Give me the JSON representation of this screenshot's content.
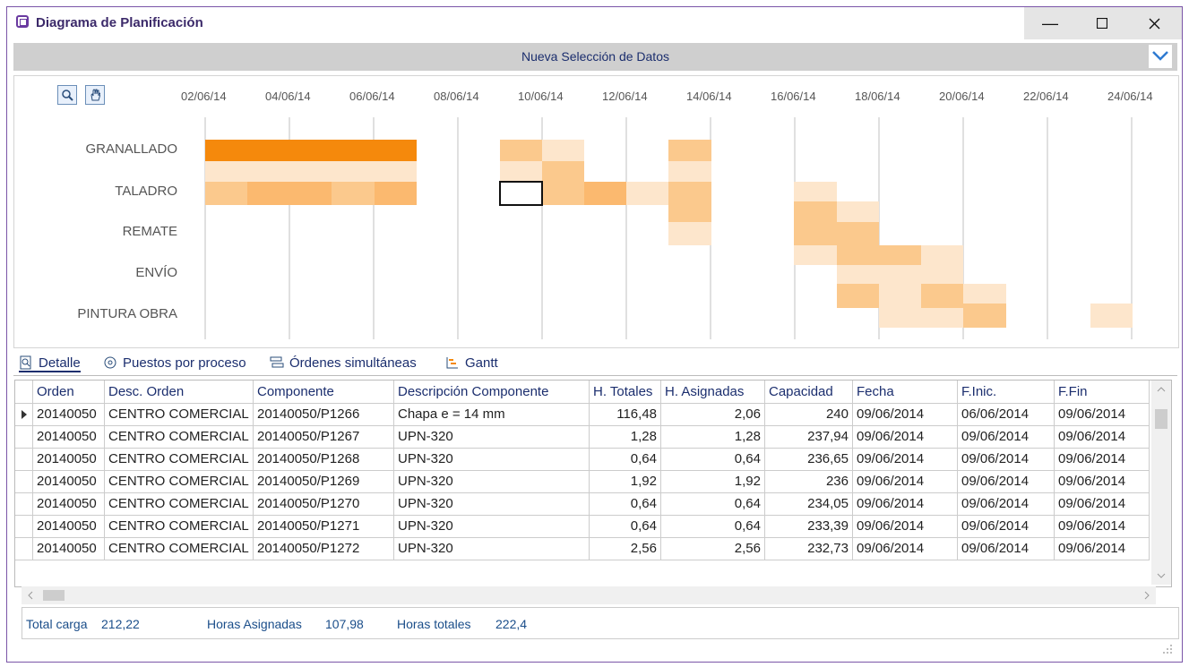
{
  "window": {
    "title": "Diagrama de Planificación",
    "minimize_icon": "minimize-icon",
    "maximize_icon": "maximize-icon",
    "close_icon": "close-icon"
  },
  "selection_bar": {
    "label": "Nueva Selección de Datos"
  },
  "timeline": {
    "dates": [
      "02/06/14",
      "04/06/14",
      "06/06/14",
      "08/06/14",
      "10/06/14",
      "12/06/14",
      "14/06/14",
      "16/06/14",
      "18/06/14",
      "20/06/14",
      "22/06/14",
      "24/06/14"
    ],
    "rows": [
      "GRANALLADO",
      "TALADRO",
      "REMATE",
      "ENVÍO",
      "PINTURA OBRA"
    ]
  },
  "tabs": [
    "Detalle",
    "Puestos por proceso",
    "Órdenes simultáneas",
    "Gantt"
  ],
  "grid": {
    "columns": [
      "Orden",
      "Desc. Orden",
      "Componente",
      "Descripción Componente",
      "H. Totales",
      "H. Asignadas",
      "Capacidad",
      "Fecha",
      "F.Inic.",
      "F.Fin"
    ],
    "rows": [
      [
        "20140050",
        "CENTRO COMERCIAL",
        "20140050/P1266",
        "Chapa e = 14 mm",
        "116,48",
        "2,06",
        "240",
        "09/06/2014",
        "06/06/2014",
        "09/06/2014"
      ],
      [
        "20140050",
        "CENTRO COMERCIAL",
        "20140050/P1267",
        "UPN-320",
        "1,28",
        "1,28",
        "237,94",
        "09/06/2014",
        "09/06/2014",
        "09/06/2014"
      ],
      [
        "20140050",
        "CENTRO COMERCIAL",
        "20140050/P1268",
        "UPN-320",
        "0,64",
        "0,64",
        "236,65",
        "09/06/2014",
        "09/06/2014",
        "09/06/2014"
      ],
      [
        "20140050",
        "CENTRO COMERCIAL",
        "20140050/P1269",
        "UPN-320",
        "1,92",
        "1,92",
        "236",
        "09/06/2014",
        "09/06/2014",
        "09/06/2014"
      ],
      [
        "20140050",
        "CENTRO COMERCIAL",
        "20140050/P1270",
        "UPN-320",
        "0,64",
        "0,64",
        "234,05",
        "09/06/2014",
        "09/06/2014",
        "09/06/2014"
      ],
      [
        "20140050",
        "CENTRO COMERCIAL",
        "20140050/P1271",
        "UPN-320",
        "0,64",
        "0,64",
        "233,39",
        "09/06/2014",
        "09/06/2014",
        "09/06/2014"
      ],
      [
        "20140050",
        "CENTRO COMERCIAL",
        "20140050/P1272",
        "UPN-320",
        "2,56",
        "2,56",
        "232,73",
        "09/06/2014",
        "09/06/2014",
        "09/06/2014"
      ]
    ]
  },
  "footer": {
    "total_carga_label": "Total carga",
    "total_carga": "212,22",
    "horas_asignadas_label": "Horas Asignadas",
    "horas_asignadas": "107,98",
    "horas_totales_label": "Horas totales",
    "horas_totales": "222,4"
  },
  "colors": {
    "accent": "#1b2e6e",
    "load_high": "#f5890c",
    "load_mid": "#fbc98d",
    "load_low": "#fde6cc",
    "title_purple": "#6a3aa0"
  }
}
